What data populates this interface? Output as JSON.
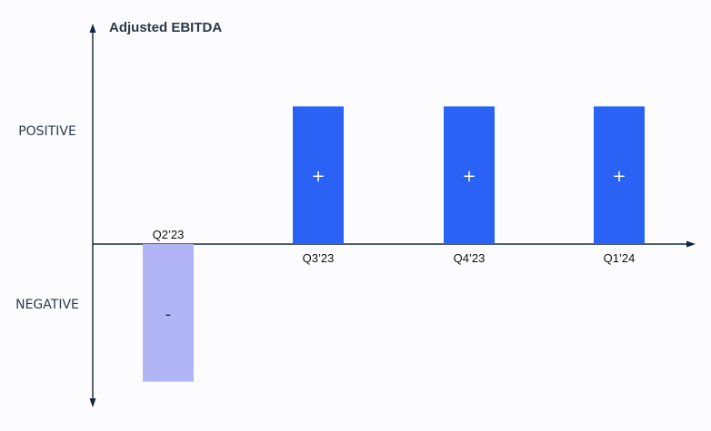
{
  "chart_data": {
    "type": "bar",
    "title": "Adjusted EBITDA",
    "ylabel_positive": "POSITIVE",
    "ylabel_negative": "NEGATIVE",
    "categories": [
      "Q2’23",
      "Q3’23",
      "Q4’23",
      "Q1’24"
    ],
    "values": [
      -1,
      1,
      1,
      1
    ],
    "signs": [
      "-",
      "+",
      "+",
      "+"
    ],
    "ylim": [
      -1.5,
      1.5
    ],
    "grid": false,
    "legend": "none"
  },
  "colors": {
    "positive": "#2962f5",
    "negative": "#b1b5f5",
    "axis": "#0f2740",
    "title": "#2b3a4b",
    "level_label": "#2b3a4b",
    "category_label": "#111111",
    "sign_on_positive": "#ffffff",
    "sign_on_negative": "#1c2b3f"
  }
}
